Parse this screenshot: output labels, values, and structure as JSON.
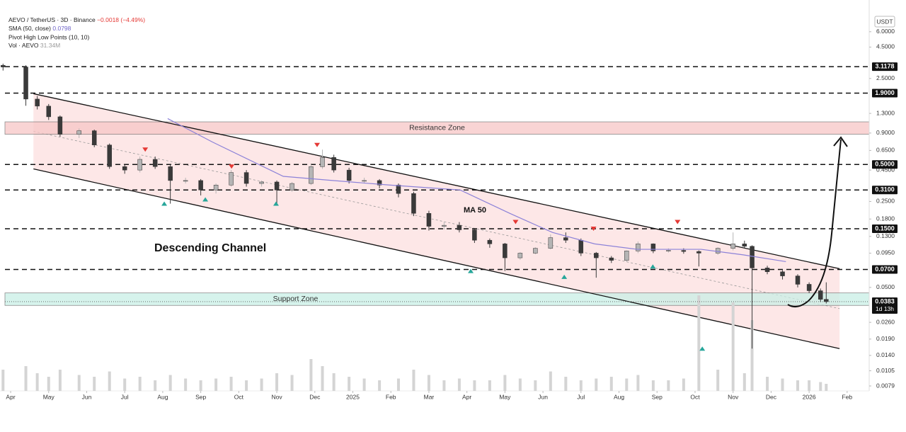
{
  "chart_data": {
    "type": "candlestick",
    "header": {
      "symbol": "AEVO / TetherUS · 3D · Binance",
      "change": "−0.0018 (−4.49%)",
      "sma": "SMA (50, close)",
      "sma_value": "0.0798",
      "pivot": "Pivot High Low Points (10, 10)",
      "vol": "Vol · AEVO",
      "vol_value": "31.34M"
    },
    "currency": "USDT",
    "log_scale": true,
    "xlim": [
      -0.28,
      22.58
    ],
    "ylim": [
      0.0072,
      7.3
    ],
    "xticks": [
      {
        "value": 0,
        "label": "Apr"
      },
      {
        "value": 1,
        "label": "May"
      },
      {
        "value": 2,
        "label": "Jun"
      },
      {
        "value": 3,
        "label": "Jul"
      },
      {
        "value": 4,
        "label": "Aug"
      },
      {
        "value": 5,
        "label": "Sep"
      },
      {
        "value": 6,
        "label": "Oct"
      },
      {
        "value": 7,
        "label": "Nov"
      },
      {
        "value": 8,
        "label": "Dec"
      },
      {
        "value": 9,
        "label": "2025"
      },
      {
        "value": 10,
        "label": "Feb"
      },
      {
        "value": 11,
        "label": "Mar"
      },
      {
        "value": 12,
        "label": "Apr"
      },
      {
        "value": 13,
        "label": "May"
      },
      {
        "value": 14,
        "label": "Jun"
      },
      {
        "value": 15,
        "label": "Jul"
      },
      {
        "value": 16,
        "label": "Aug"
      },
      {
        "value": 17,
        "label": "Sep"
      },
      {
        "value": 18,
        "label": "Oct"
      },
      {
        "value": 19,
        "label": "Nov"
      },
      {
        "value": 20,
        "label": "Dec"
      },
      {
        "value": 21,
        "label": "2026"
      },
      {
        "value": 22,
        "label": "Feb"
      }
    ],
    "yticks": [
      {
        "value": 6,
        "label": "6.0000"
      },
      {
        "value": 4.5,
        "label": "4.5000"
      },
      {
        "value": 2.5,
        "label": "2.5000"
      },
      {
        "value": 1.3,
        "label": "1.3000"
      },
      {
        "value": 0.9,
        "label": "0.9000"
      },
      {
        "value": 0.65,
        "label": "0.6500"
      },
      {
        "value": 0.45,
        "label": "0.4500"
      },
      {
        "value": 0.25,
        "label": "0.2500"
      },
      {
        "value": 0.18,
        "label": "0.1800"
      },
      {
        "value": 0.13,
        "label": "0.1300"
      },
      {
        "value": 0.095,
        "label": "0.0950"
      },
      {
        "value": 0.05,
        "label": "0.0500"
      },
      {
        "value": 0.026,
        "label": "0.0260"
      },
      {
        "value": 0.019,
        "label": "0.0190"
      },
      {
        "value": 0.014,
        "label": "0.0140"
      },
      {
        "value": 0.0105,
        "label": "0.0105"
      },
      {
        "value": 0.0079,
        "label": "0.0079"
      }
    ],
    "levels": [
      {
        "value": 3.1178,
        "label": "3.1178"
      },
      {
        "value": 1.9,
        "label": "1.9000"
      },
      {
        "value": 0.5,
        "label": "0.5000"
      },
      {
        "value": 0.31,
        "label": "0.3100"
      },
      {
        "value": 0.15,
        "label": "0.1500"
      },
      {
        "value": 0.07,
        "label": "0.0700"
      }
    ],
    "last_price": {
      "value": 0.0383,
      "label": "0.0383",
      "countdown": "1d 13h"
    },
    "zones": [
      {
        "label": "Resistance Zone",
        "range": [
          0.88,
          1.11
        ],
        "color": "#f7c6c6"
      },
      {
        "label": "Support Zone",
        "range": [
          0.0357,
          0.0451
        ],
        "color": "#c9efe6"
      }
    ],
    "channel": {
      "label": "Descending Channel",
      "color": "#fde3e3",
      "upper": {
        "x": [
          0.6,
          21.8
        ],
        "values": [
          1.88,
          0.071
        ]
      },
      "lower": {
        "x": [
          0.6,
          21.8
        ],
        "values": [
          0.46,
          0.0159
        ]
      }
    },
    "up_color": "#b5b5b5",
    "down_color": "#3a3a3a",
    "x": [
      -0.2,
      0.4,
      0.7,
      1.0,
      1.3,
      1.8,
      2.2,
      2.6,
      3.0,
      3.4,
      3.8,
      4.2,
      4.6,
      5.0,
      5.4,
      5.8,
      6.2,
      6.6,
      7.0,
      7.4,
      7.9,
      8.2,
      8.5,
      8.9,
      9.3,
      9.7,
      10.2,
      10.6,
      11.0,
      11.4,
      11.8,
      12.2,
      12.6,
      13.0,
      13.4,
      13.8,
      14.2,
      14.6,
      15.0,
      15.4,
      15.8,
      16.2,
      16.5,
      16.9,
      17.3,
      17.7,
      18.1,
      18.6,
      19.0,
      19.3,
      19.5,
      19.9,
      20.3,
      20.7,
      21.0,
      21.3,
      21.45
    ],
    "open": [
      3.2,
      3.1,
      1.7,
      1.49,
      1.22,
      0.88,
      0.94,
      0.72,
      0.48,
      0.45,
      0.55,
      0.48,
      0.37,
      0.37,
      0.31,
      0.34,
      0.43,
      0.35,
      0.36,
      0.31,
      0.35,
      0.48,
      0.57,
      0.45,
      0.37,
      0.37,
      0.34,
      0.29,
      0.2,
      0.157,
      0.16,
      0.147,
      0.121,
      0.113,
      0.087,
      0.095,
      0.104,
      0.127,
      0.121,
      0.095,
      0.087,
      0.083,
      0.099,
      0.113,
      0.099,
      0.1,
      0.098,
      0.095,
      0.104,
      0.113,
      0.108,
      0.072,
      0.067,
      0.062,
      0.053,
      0.047,
      0.04
    ],
    "high": [
      3.3,
      3.2,
      1.8,
      1.55,
      1.25,
      0.98,
      0.96,
      0.74,
      0.5,
      0.58,
      0.58,
      0.5,
      0.39,
      0.38,
      0.35,
      0.45,
      0.45,
      0.37,
      0.37,
      0.36,
      0.5,
      0.66,
      0.6,
      0.47,
      0.39,
      0.38,
      0.35,
      0.3,
      0.21,
      0.17,
      0.17,
      0.15,
      0.125,
      0.115,
      0.097,
      0.106,
      0.135,
      0.14,
      0.125,
      0.097,
      0.09,
      0.1,
      0.118,
      0.114,
      0.104,
      0.104,
      0.1,
      0.106,
      0.14,
      0.12,
      0.11,
      0.075,
      0.069,
      0.064,
      0.055,
      0.049,
      0.055
    ],
    "low": [
      2.9,
      1.5,
      1.4,
      1.15,
      0.84,
      0.82,
      0.69,
      0.46,
      0.42,
      0.43,
      0.46,
      0.24,
      0.35,
      0.28,
      0.29,
      0.33,
      0.33,
      0.33,
      0.24,
      0.3,
      0.34,
      0.46,
      0.43,
      0.35,
      0.35,
      0.32,
      0.27,
      0.19,
      0.145,
      0.148,
      0.14,
      0.115,
      0.105,
      0.068,
      0.084,
      0.093,
      0.102,
      0.115,
      0.09,
      0.06,
      0.079,
      0.081,
      0.095,
      0.095,
      0.096,
      0.094,
      0.074,
      0.092,
      0.1,
      0.105,
      0.0159,
      0.064,
      0.058,
      0.05,
      0.045,
      0.038,
      0.037
    ],
    "close": [
      3.1,
      1.7,
      1.49,
      1.22,
      0.88,
      0.94,
      0.72,
      0.48,
      0.45,
      0.55,
      0.48,
      0.37,
      0.37,
      0.31,
      0.34,
      0.43,
      0.35,
      0.36,
      0.31,
      0.35,
      0.48,
      0.57,
      0.45,
      0.37,
      0.37,
      0.34,
      0.29,
      0.2,
      0.157,
      0.16,
      0.147,
      0.121,
      0.113,
      0.087,
      0.095,
      0.104,
      0.127,
      0.121,
      0.095,
      0.087,
      0.083,
      0.099,
      0.113,
      0.099,
      0.1,
      0.098,
      0.095,
      0.104,
      0.113,
      0.108,
      0.072,
      0.067,
      0.062,
      0.053,
      0.047,
      0.04,
      0.0383
    ],
    "volume": {
      "color": "#d4d4d4",
      "ylim": [
        0,
        300
      ],
      "values": [
        60,
        70,
        50,
        40,
        60,
        45,
        40,
        55,
        35,
        40,
        30,
        45,
        35,
        30,
        35,
        40,
        30,
        35,
        50,
        45,
        90,
        70,
        50,
        40,
        35,
        30,
        35,
        60,
        45,
        30,
        35,
        30,
        30,
        45,
        35,
        30,
        55,
        40,
        30,
        35,
        40,
        35,
        45,
        30,
        30,
        35,
        270,
        60,
        250,
        50,
        200,
        40,
        35,
        30,
        30,
        25,
        20
      ]
    },
    "ma": {
      "label": "MA 50",
      "color": "#8c82d8",
      "x": [
        4.13,
        5.31,
        7.17,
        8.47,
        9.96,
        11.82,
        13.13,
        14.25,
        15.36,
        16.48,
        18.16,
        19.27,
        20.39
      ],
      "values": [
        1.18,
        0.76,
        0.4,
        0.37,
        0.34,
        0.31,
        0.2,
        0.14,
        0.113,
        0.102,
        0.102,
        0.092,
        0.081
      ]
    },
    "pivot_highs": {
      "color": "#e53935",
      "x": [
        3.54,
        5.81,
        8.06,
        13.28,
        15.33,
        17.54
      ],
      "values": [
        0.66,
        0.48,
        0.72,
        0.17,
        0.15,
        0.17
      ]
    },
    "pivot_lows": {
      "color": "#26a69a",
      "x": [
        4.04,
        5.12,
        6.98,
        12.1,
        14.56,
        16.89,
        18.19
      ],
      "values": [
        0.24,
        0.26,
        0.24,
        0.068,
        0.061,
        0.074,
        0.0159
      ]
    }
  }
}
